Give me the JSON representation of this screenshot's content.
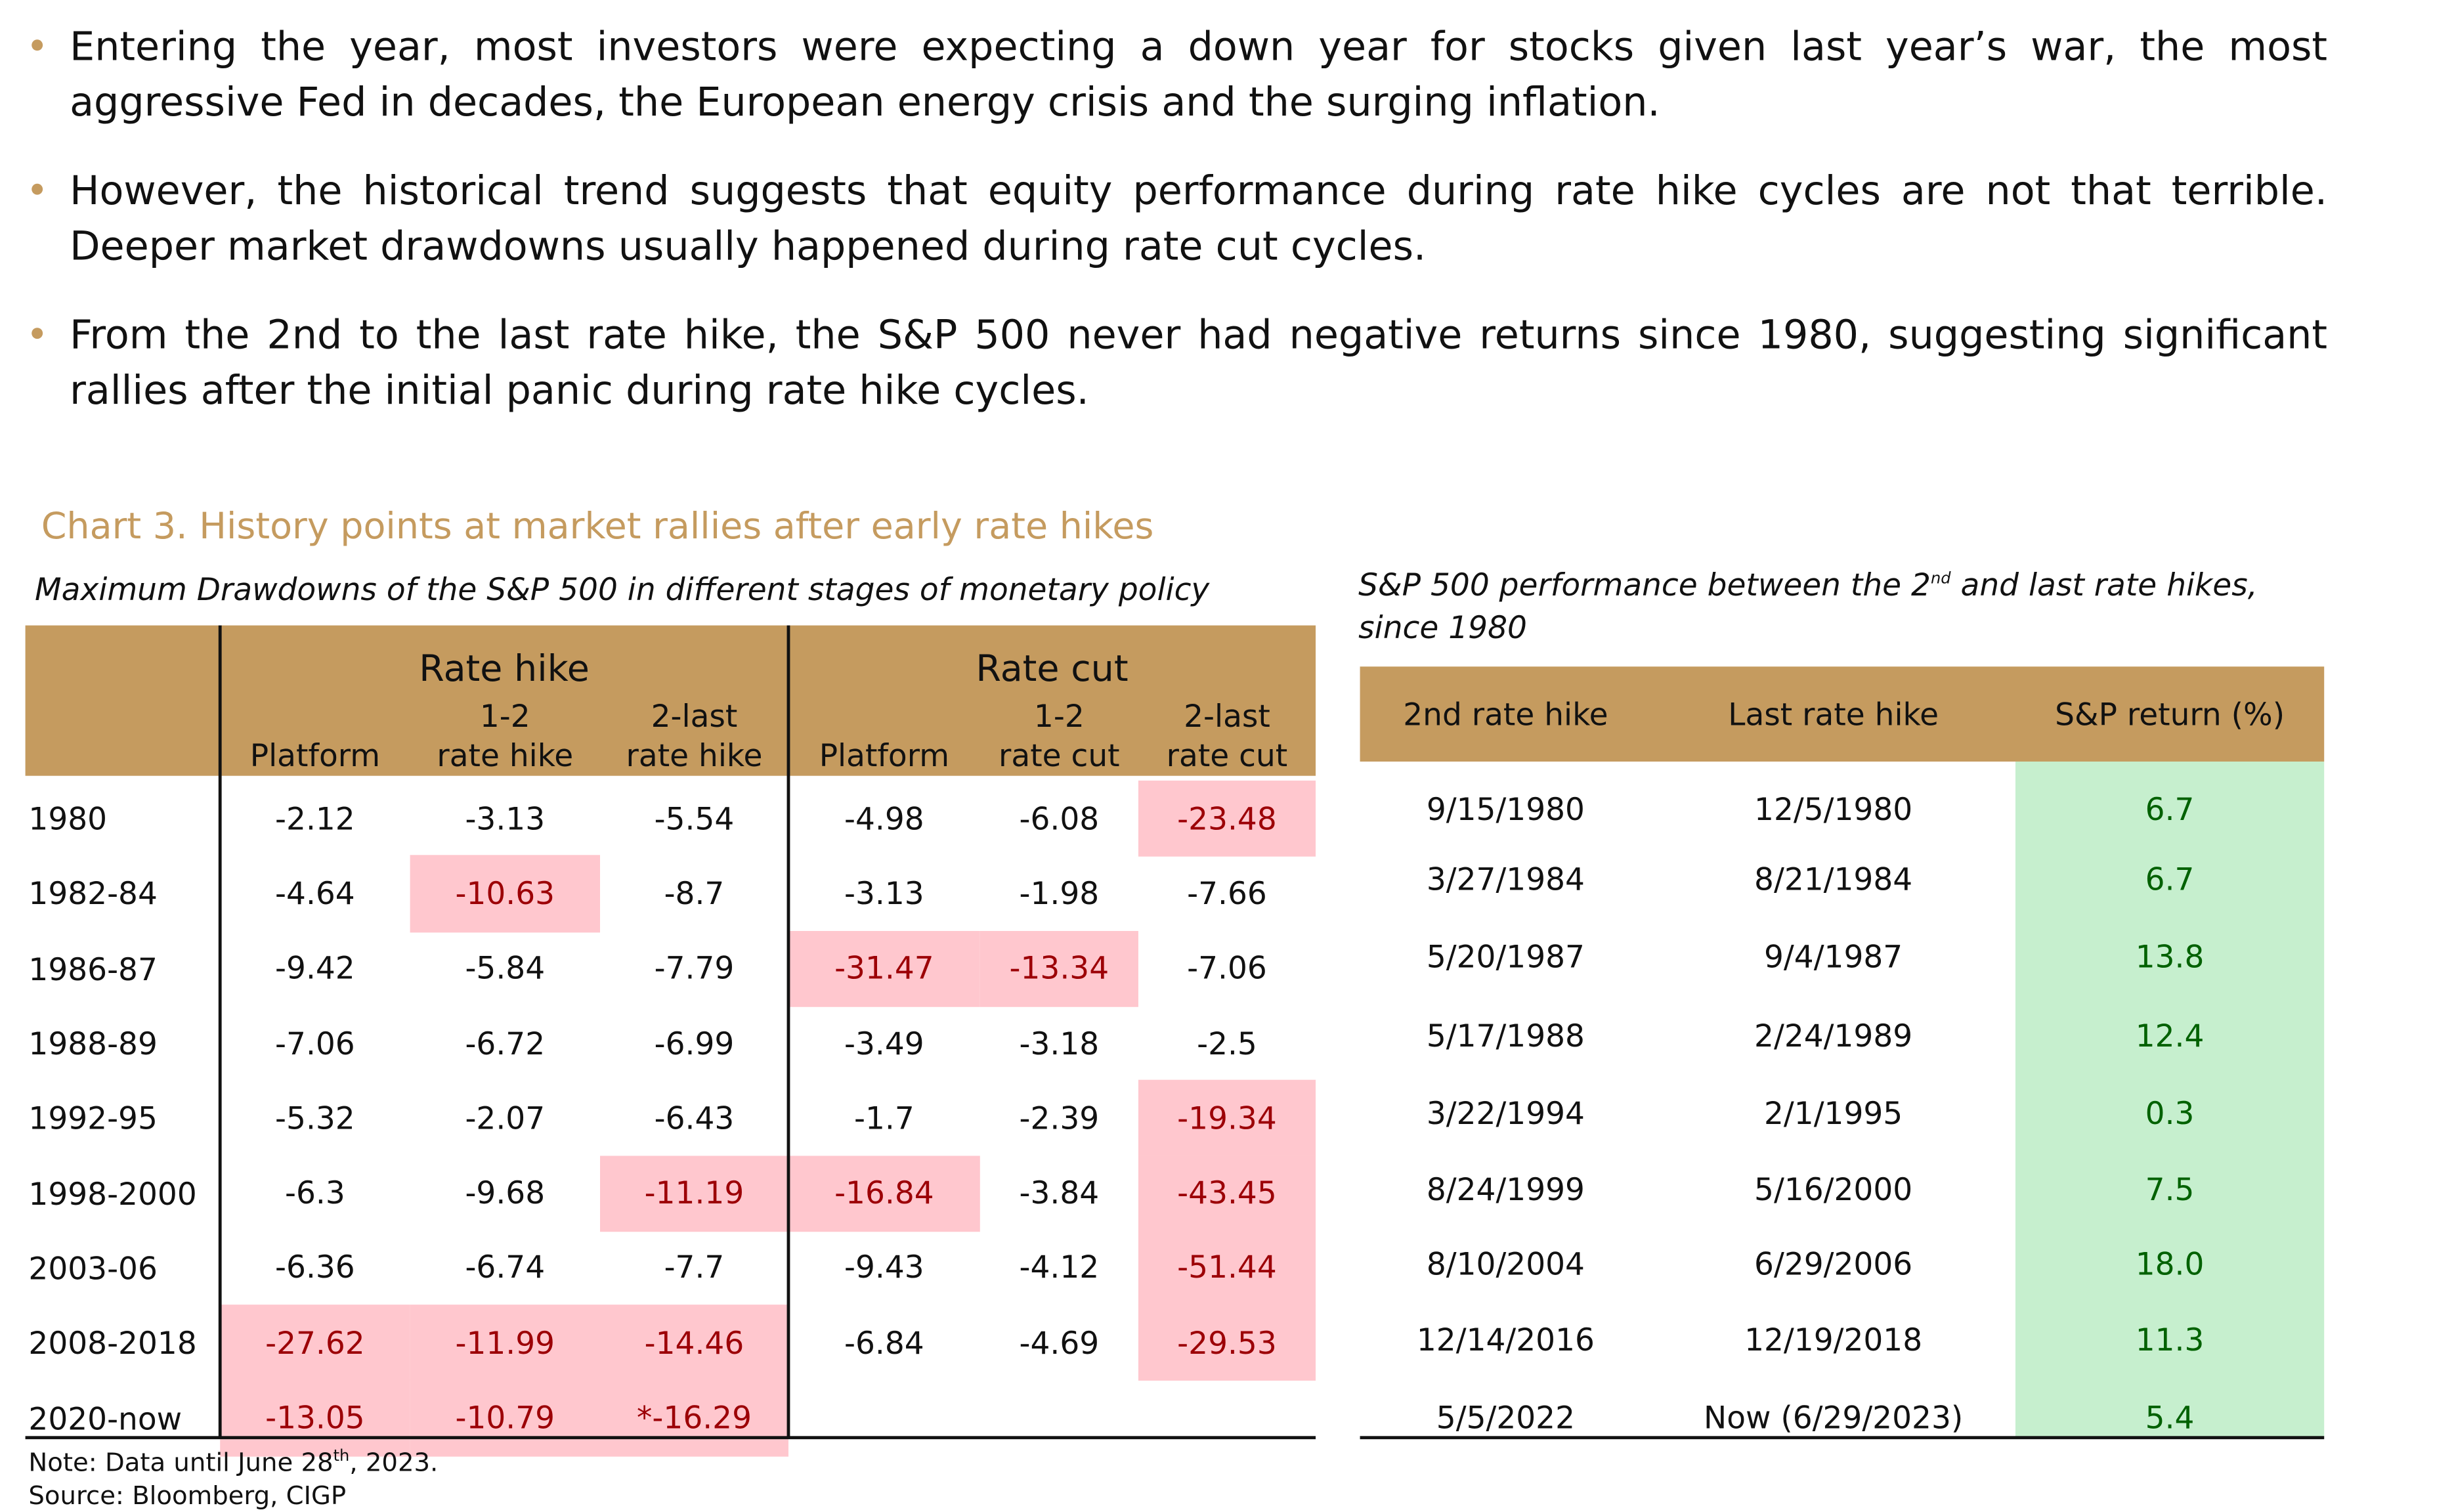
{
  "bullets": [
    "Entering the year, most investors were expecting a down year for stocks given last year’s war, the most aggressive Fed in decades, the European energy crisis and the surging inflation.",
    "However, the historical trend suggests that equity performance during rate hike cycles are not that terrible. Deeper market drawdowns usually happened during rate cut cycles.",
    "From the 2nd to the last rate hike, the S&P 500 never had negative returns since 1980, suggesting significant rallies after the initial panic during rate hike cycles."
  ],
  "chart_title": "Chart 3. History points at market rallies after early rate hikes",
  "colors": {
    "accent": "#c59b5f",
    "highlight_bg": "#ffc7ce",
    "highlight_text": "#9c0006",
    "positive_bg": "#c6efce",
    "positive_text": "#006100"
  },
  "left_table": {
    "subtitle": "Maximum Drawdowns of the S&P 500 in different stages of monetary policy",
    "group_hike": "Rate hike",
    "group_cut": "Rate cut",
    "columns": [
      {
        "l1": "",
        "l2": "Platform"
      },
      {
        "l1": "1-2",
        "l2": "rate hike"
      },
      {
        "l1": "2-last",
        "l2": "rate hike"
      },
      {
        "l1": "",
        "l2": "Platform"
      },
      {
        "l1": "1-2",
        "l2": "rate cut"
      },
      {
        "l1": "2-last",
        "l2": "rate cut"
      }
    ],
    "rows": [
      {
        "label": "1980",
        "values": [
          "-2.12",
          "-3.13",
          "-5.54",
          "-4.98",
          "-6.08",
          "-23.48"
        ],
        "highlight": [
          5
        ]
      },
      {
        "label": "1982-84",
        "values": [
          "-4.64",
          "-10.63",
          "-8.7",
          "-3.13",
          "-1.98",
          "-7.66"
        ],
        "highlight": [
          1
        ]
      },
      {
        "label": "1986-87",
        "values": [
          "-9.42",
          "-5.84",
          "-7.79",
          "-31.47",
          "-13.34",
          "-7.06"
        ],
        "highlight": [
          3,
          4
        ]
      },
      {
        "label": "1988-89",
        "values": [
          "-7.06",
          "-6.72",
          "-6.99",
          "-3.49",
          "-3.18",
          "-2.5"
        ],
        "highlight": []
      },
      {
        "label": "1992-95",
        "values": [
          "-5.32",
          "-2.07",
          "-6.43",
          "-1.7",
          "-2.39",
          "-19.34"
        ],
        "highlight": [
          5
        ]
      },
      {
        "label": "1998-2000",
        "values": [
          "-6.3",
          "-9.68",
          "-11.19",
          "-16.84",
          "-3.84",
          "-43.45"
        ],
        "highlight": [
          2,
          3,
          5
        ]
      },
      {
        "label": "2003-06",
        "values": [
          "-6.36",
          "-6.74",
          "-7.7",
          "-9.43",
          "-4.12",
          "-51.44"
        ],
        "highlight": [
          5
        ]
      },
      {
        "label": "2008-2018",
        "values": [
          "-27.62",
          "-11.99",
          "-14.46",
          "-6.84",
          "-4.69",
          "-29.53"
        ],
        "highlight": [
          0,
          1,
          2,
          5
        ]
      },
      {
        "label": "2020-now",
        "values": [
          "-13.05",
          "-10.79",
          "*-16.29",
          "",
          "",
          ""
        ],
        "highlight": [
          0,
          1,
          2
        ]
      }
    ],
    "note_prefix": "Note: Data until June 28",
    "note_sup": "th",
    "note_suffix": ", 2023.",
    "source": "Source: Bloomberg, CIGP"
  },
  "right_table": {
    "subtitle_a": "S&P 500 performance between the 2",
    "subtitle_sup": "nd",
    "subtitle_b": " and last rate hikes,",
    "subtitle_line2": "since 1980",
    "headers": [
      "2nd rate hike",
      "Last rate hike",
      "S&P return (%)"
    ],
    "rows": [
      [
        "9/15/1980",
        "12/5/1980",
        "6.7"
      ],
      [
        "3/27/1984",
        "8/21/1984",
        "6.7"
      ],
      [
        "5/20/1987",
        "9/4/1987",
        "13.8"
      ],
      [
        "5/17/1988",
        "2/24/1989",
        "12.4"
      ],
      [
        "3/22/1994",
        "2/1/1995",
        "0.3"
      ],
      [
        "8/24/1999",
        "5/16/2000",
        "7.5"
      ],
      [
        "8/10/2004",
        "6/29/2006",
        "18.0"
      ],
      [
        "12/14/2016",
        "12/19/2018",
        "11.3"
      ],
      [
        "5/5/2022",
        "Now (6/29/2023)",
        "5.4"
      ]
    ]
  }
}
